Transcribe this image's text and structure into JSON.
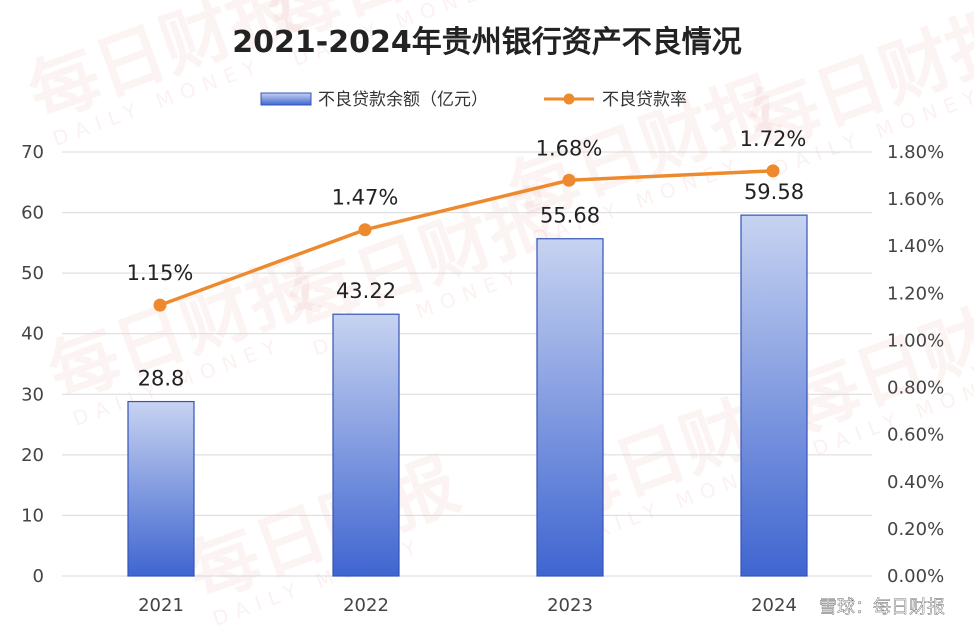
{
  "chart_data": {
    "type": "bar",
    "title": "2021-2024年贵州银行资产不良情况",
    "categories": [
      "2021",
      "2022",
      "2023",
      "2024"
    ],
    "series": [
      {
        "name": "不良贷款余额（亿元）",
        "kind": "bar",
        "axis": "left",
        "values": [
          28.8,
          43.22,
          55.68,
          59.58
        ],
        "labels": [
          "28.8",
          "43.22",
          "55.68",
          "59.58"
        ]
      },
      {
        "name": "不良贷款率",
        "kind": "line",
        "axis": "right",
        "values": [
          1.15,
          1.47,
          1.68,
          1.72
        ],
        "labels": [
          "1.15%",
          "1.47%",
          "1.68%",
          "1.72%"
        ]
      }
    ],
    "ylim_left": [
      0,
      70
    ],
    "ytick_left": [
      "0",
      "10",
      "20",
      "30",
      "40",
      "50",
      "60",
      "70"
    ],
    "ylim_right": [
      0,
      1.8
    ],
    "ytick_right": [
      "0.00%",
      "0.20%",
      "0.40%",
      "0.60%",
      "0.80%",
      "1.00%",
      "1.20%",
      "1.40%",
      "1.60%",
      "1.80%"
    ],
    "grid": true,
    "legend_position": "top-center",
    "colors": {
      "bar_top": "#c7d3f1",
      "bar_bottom": "#3f65d0",
      "bar_edge": "#3554b8",
      "line": "#ee8a2e",
      "grid": "#d9d9d9"
    }
  },
  "watermark": {
    "text": "每日财报",
    "subtext": "DAILY MONEY"
  },
  "credit": "雪球：每日财报"
}
